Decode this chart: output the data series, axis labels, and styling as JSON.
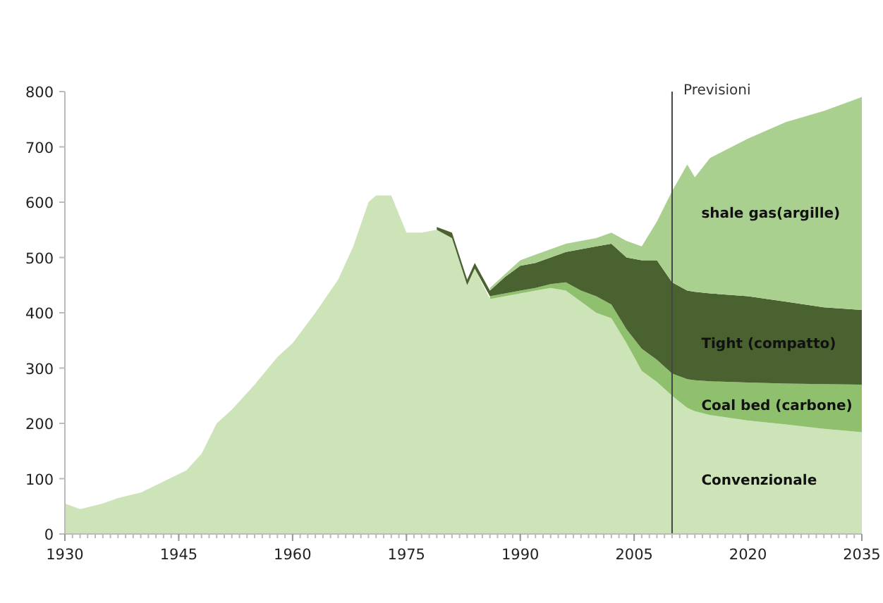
{
  "chart_data": {
    "type": "area",
    "stacked": true,
    "x": [
      1930,
      1932,
      1935,
      1937,
      1940,
      1943,
      1946,
      1948,
      1950,
      1952,
      1955,
      1958,
      1960,
      1963,
      1966,
      1968,
      1970,
      1971,
      1973,
      1975,
      1977,
      1979,
      1981,
      1983,
      1984,
      1986,
      1988,
      1990,
      1992,
      1994,
      1996,
      1998,
      2000,
      2002,
      2004,
      2006,
      2008,
      2010,
      2012,
      2013,
      2015,
      2020,
      2025,
      2030,
      2035
    ],
    "series": [
      {
        "name": "Convenzionale",
        "color": "#cde3b8",
        "values": [
          55,
          45,
          55,
          65,
          75,
          95,
          115,
          145,
          200,
          225,
          270,
          320,
          345,
          400,
          460,
          520,
          600,
          612,
          612,
          545,
          545,
          550,
          535,
          450,
          480,
          425,
          430,
          435,
          440,
          445,
          440,
          420,
          400,
          390,
          345,
          295,
          275,
          250,
          228,
          222,
          215,
          205,
          198,
          190,
          184
        ]
      },
      {
        "name": "Coal bed (carbone)",
        "color": "#8fc06e",
        "values": [
          null,
          null,
          null,
          null,
          null,
          null,
          null,
          null,
          null,
          null,
          null,
          null,
          null,
          null,
          null,
          null,
          null,
          null,
          null,
          null,
          null,
          null,
          null,
          null,
          null,
          5,
          5,
          5,
          5,
          7,
          15,
          20,
          30,
          25,
          25,
          40,
          40,
          40,
          52,
          56,
          61,
          69,
          74,
          81,
          86
        ]
      },
      {
        "name": "Tight (compatto)",
        "color": "#4a6130",
        "values": [
          null,
          null,
          null,
          null,
          null,
          null,
          null,
          null,
          null,
          null,
          null,
          null,
          null,
          null,
          null,
          null,
          null,
          null,
          null,
          null,
          null,
          5,
          10,
          10,
          10,
          10,
          30,
          45,
          45,
          48,
          55,
          75,
          90,
          110,
          130,
          160,
          180,
          165,
          160,
          160,
          159,
          156,
          148,
          139,
          135
        ]
      },
      {
        "name": "shale gas(argille)",
        "color": "#a9d08e",
        "values": [
          null,
          null,
          null,
          null,
          null,
          null,
          null,
          null,
          null,
          null,
          null,
          null,
          null,
          null,
          null,
          null,
          null,
          null,
          null,
          null,
          null,
          null,
          null,
          null,
          null,
          5,
          5,
          10,
          15,
          15,
          15,
          15,
          15,
          20,
          30,
          25,
          70,
          165,
          228,
          207,
          245,
          285,
          325,
          355,
          385
        ]
      }
    ],
    "xlim": [
      1930,
      2035
    ],
    "xticks": [
      1930,
      1945,
      1960,
      1975,
      1990,
      2005,
      2020,
      2035
    ],
    "ylim": [
      0,
      800
    ],
    "yticks": [
      0,
      100,
      200,
      300,
      400,
      500,
      600,
      700,
      800
    ],
    "ref_lines": [
      {
        "axis": "x",
        "value": 2010,
        "label": "Previsioni",
        "color": "#444444"
      }
    ],
    "grid": false,
    "legend": false
  }
}
